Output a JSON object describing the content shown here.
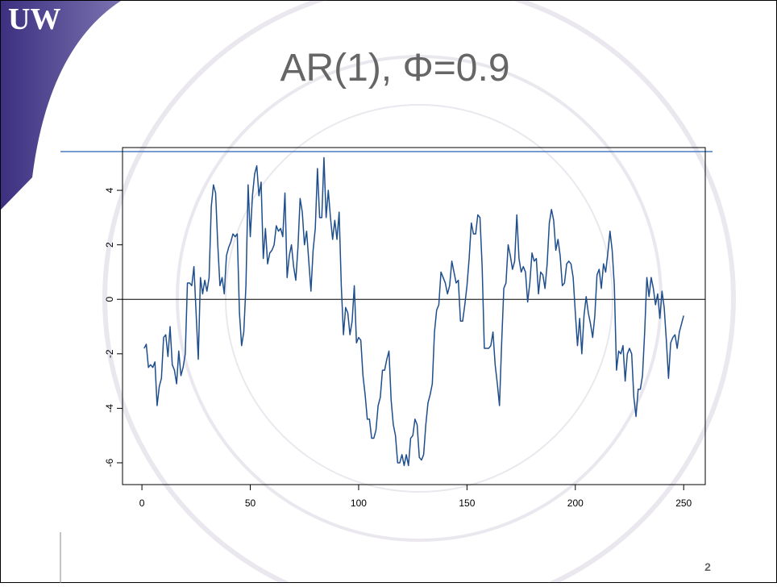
{
  "slide": {
    "logo": "UW",
    "page_number": "2"
  },
  "chart_data": {
    "type": "line",
    "title": "AR(1), Φ=0.9",
    "color": "#1f4e8c",
    "hline": 0,
    "x": [
      1,
      2,
      3,
      4,
      5,
      6,
      7,
      8,
      9,
      10,
      11,
      12,
      13,
      14,
      15,
      16,
      17,
      18,
      19,
      20,
      21,
      22,
      23,
      24,
      25,
      26,
      27,
      28,
      29,
      30,
      31,
      32,
      33,
      34,
      35,
      36,
      37,
      38,
      39,
      40,
      41,
      42,
      43,
      44,
      45,
      46,
      47,
      48,
      49,
      50,
      51,
      52,
      53,
      54,
      55,
      56,
      57,
      58,
      59,
      60,
      61,
      62,
      63,
      64,
      65,
      66,
      67,
      68,
      69,
      70,
      71,
      72,
      73,
      74,
      75,
      76,
      77,
      78,
      79,
      80,
      81,
      82,
      83,
      84,
      85,
      86,
      87,
      88,
      89,
      90,
      91,
      92,
      93,
      94,
      95,
      96,
      97,
      98,
      99,
      100,
      101,
      102,
      103,
      104,
      105,
      106,
      107,
      108,
      109,
      110,
      111,
      112,
      113,
      114,
      115,
      116,
      117,
      118,
      119,
      120,
      121,
      122,
      123,
      124,
      125,
      126,
      127,
      128,
      129,
      130,
      131,
      132,
      133,
      134,
      135,
      136,
      137,
      138,
      139,
      140,
      141,
      142,
      143,
      144,
      145,
      146,
      147,
      148,
      149,
      150,
      151,
      152,
      153,
      154,
      155,
      156,
      157,
      158,
      159,
      160,
      161,
      162,
      163,
      164,
      165,
      166,
      167,
      168,
      169,
      170,
      171,
      172,
      173,
      174,
      175,
      176,
      177,
      178,
      179,
      180,
      181,
      182,
      183,
      184,
      185,
      186,
      187,
      188,
      189,
      190,
      191,
      192,
      193,
      194,
      195,
      196,
      197,
      198,
      199,
      200,
      201,
      202,
      203,
      204,
      205,
      206,
      207,
      208,
      209,
      210,
      211,
      212,
      213,
      214,
      215,
      216,
      217,
      218,
      219,
      220,
      221,
      222,
      223,
      224,
      225,
      226,
      227,
      228,
      229,
      230,
      231,
      232,
      233,
      234,
      235,
      236,
      237,
      238,
      239,
      240,
      241,
      242,
      243,
      244,
      245,
      246,
      247,
      248,
      249,
      250
    ],
    "values": [
      -1.8,
      -1.65,
      -2.5,
      -2.4,
      -2.5,
      -2.3,
      -3.9,
      -3.2,
      -2.9,
      -1.4,
      -1.3,
      -2.1,
      -1.0,
      -2.4,
      -2.6,
      -3.1,
      -1.9,
      -2.8,
      -2.5,
      -2.0,
      0.6,
      0.6,
      0.5,
      1.2,
      -0.5,
      -2.2,
      0.8,
      0.2,
      0.7,
      0.3,
      0.8,
      3.4,
      4.2,
      3.9,
      2.0,
      0.5,
      0.8,
      0.2,
      1.6,
      1.9,
      2.1,
      2.4,
      2.3,
      2.4,
      -0.5,
      -1.7,
      -1.2,
      0.5,
      4.2,
      2.3,
      3.8,
      4.6,
      4.9,
      3.8,
      4.3,
      1.5,
      2.6,
      1.3,
      1.7,
      1.8,
      2.0,
      2.7,
      2.5,
      2.6,
      2.3,
      3.9,
      0.8,
      1.6,
      2.0,
      1.2,
      0.7,
      1.9,
      3.7,
      3.2,
      2.0,
      2.5,
      1.4,
      0.3,
      1.8,
      2.6,
      4.8,
      3.0,
      3.0,
      5.2,
      3.0,
      4.0,
      3.0,
      2.2,
      2.9,
      2.2,
      3.2,
      0.5,
      -1.3,
      -0.3,
      -0.5,
      -1.3,
      -0.8,
      0.5,
      -1.6,
      -1.4,
      -1.5,
      -2.8,
      -3.5,
      -4.4,
      -4.4,
      -5.1,
      -5.1,
      -4.8,
      -3.9,
      -3.6,
      -2.6,
      -2.6,
      -2.2,
      -1.9,
      -3.7,
      -4.6,
      -5.0,
      -6.0,
      -6.0,
      -5.7,
      -6.1,
      -5.7,
      -6.1,
      -5.1,
      -5.0,
      -4.4,
      -4.6,
      -5.8,
      -5.9,
      -5.7,
      -4.6,
      -3.8,
      -3.5,
      -3.1,
      -1.2,
      -0.4,
      -0.2,
      1.0,
      0.8,
      0.6,
      0.2,
      0.5,
      1.4,
      1.0,
      0.6,
      0.7,
      -0.8,
      -0.8,
      -0.2,
      0.5,
      1.5,
      2.8,
      2.4,
      2.4,
      3.1,
      3.0,
      1.2,
      -1.8,
      -1.8,
      -1.8,
      -1.7,
      -1.2,
      -2.4,
      -3.1,
      -3.9,
      -1.6,
      0.4,
      0.6,
      2.0,
      1.6,
      1.1,
      1.4,
      3.1,
      1.5,
      1.0,
      1.2,
      1.0,
      -0.1,
      0.6,
      1.7,
      1.4,
      1.5,
      0.2,
      1.0,
      0.9,
      0.4,
      1.3,
      2.8,
      3.3,
      2.9,
      1.8,
      2.2,
      1.6,
      0.5,
      0.6,
      1.3,
      1.4,
      1.3,
      0.8,
      -0.5,
      -1.7,
      -0.7,
      -2.0,
      -0.6,
      0.1,
      -0.5,
      -0.9,
      -1.4,
      -0.6,
      0.9,
      1.1,
      0.4,
      1.3,
      1.0,
      1.7,
      2.5,
      1.8,
      0.5,
      -2.6,
      -1.9,
      -2.0,
      -1.7,
      -3.0,
      -2.0,
      -1.8,
      -2.0,
      -3.6,
      -4.3,
      -3.3,
      -3.3,
      -2.8,
      -1.2,
      0.8,
      0.1,
      0.8,
      0.4,
      -0.2,
      0.2,
      -0.7,
      0.3,
      -0.3,
      -1.5,
      -2.9,
      -1.6,
      -1.4,
      -1.3,
      -1.8,
      -1.2,
      -0.9,
      -0.6
    ],
    "xlim": [
      -8.96,
      259.96
    ],
    "xticks": [
      0,
      50,
      100,
      150,
      200,
      250
    ],
    "ylim": [
      -6.8,
      5.57
    ],
    "yticks": [
      -6,
      -4,
      -2,
      0,
      2,
      4
    ]
  }
}
